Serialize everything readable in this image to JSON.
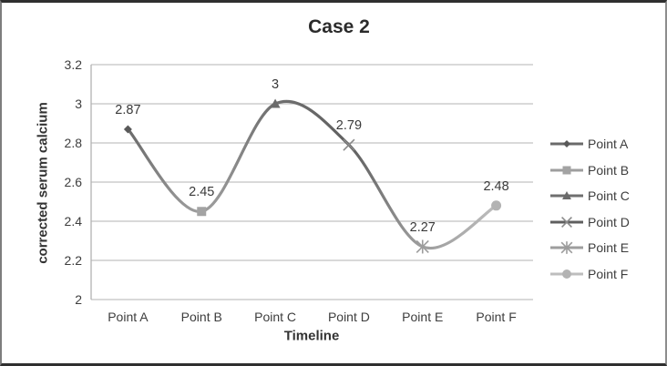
{
  "chart_data": {
    "type": "line",
    "smooth": true,
    "title": "Case 2",
    "xlabel": "Timeline",
    "ylabel": "corrected serum calcium",
    "categories": [
      "Point A",
      "Point B",
      "Point C",
      "Point D",
      "Point E",
      "Point F"
    ],
    "values": [
      2.87,
      2.45,
      3,
      2.79,
      2.27,
      2.48
    ],
    "series": [
      {
        "name": "Point A",
        "value": 2.87,
        "label": "2.87",
        "marker": "diamond",
        "marker_color": "#595959",
        "line_color": "#6a6a6a"
      },
      {
        "name": "Point B",
        "value": 2.45,
        "label": "2.45",
        "marker": "square",
        "marker_color": "#a3a3a3",
        "line_color": "#9e9e9e"
      },
      {
        "name": "Point C",
        "value": 3,
        "label": "3",
        "marker": "triangle",
        "marker_color": "#6b6b6b",
        "line_color": "#6f6f6f"
      },
      {
        "name": "Point D",
        "value": 2.79,
        "label": "2.79",
        "marker": "x",
        "marker_color": "#8a8a8a",
        "line_color": "#5f5f5f"
      },
      {
        "name": "Point E",
        "value": 2.27,
        "label": "2.27",
        "marker": "asterisk",
        "marker_color": "#9c9c9c",
        "line_color": "#9e9e9e"
      },
      {
        "name": "Point F",
        "value": 2.48,
        "label": "2.48",
        "marker": "circle",
        "marker_color": "#b3b3b3",
        "line_color": "#bdbdbd"
      }
    ],
    "y_ticks": [
      "3.2",
      "3",
      "2.8",
      "2.6",
      "2.4",
      "2.2",
      "2"
    ],
    "ylim": [
      2,
      3.2
    ],
    "grid": true,
    "legend_position": "right"
  },
  "colors": {
    "background": "#ffffff",
    "frame_border": "#2f2f2f",
    "grid": "#c2c2c2",
    "axis": "#b2b2b2",
    "text": "#3d3d3d",
    "title": "#2b2b2b"
  }
}
